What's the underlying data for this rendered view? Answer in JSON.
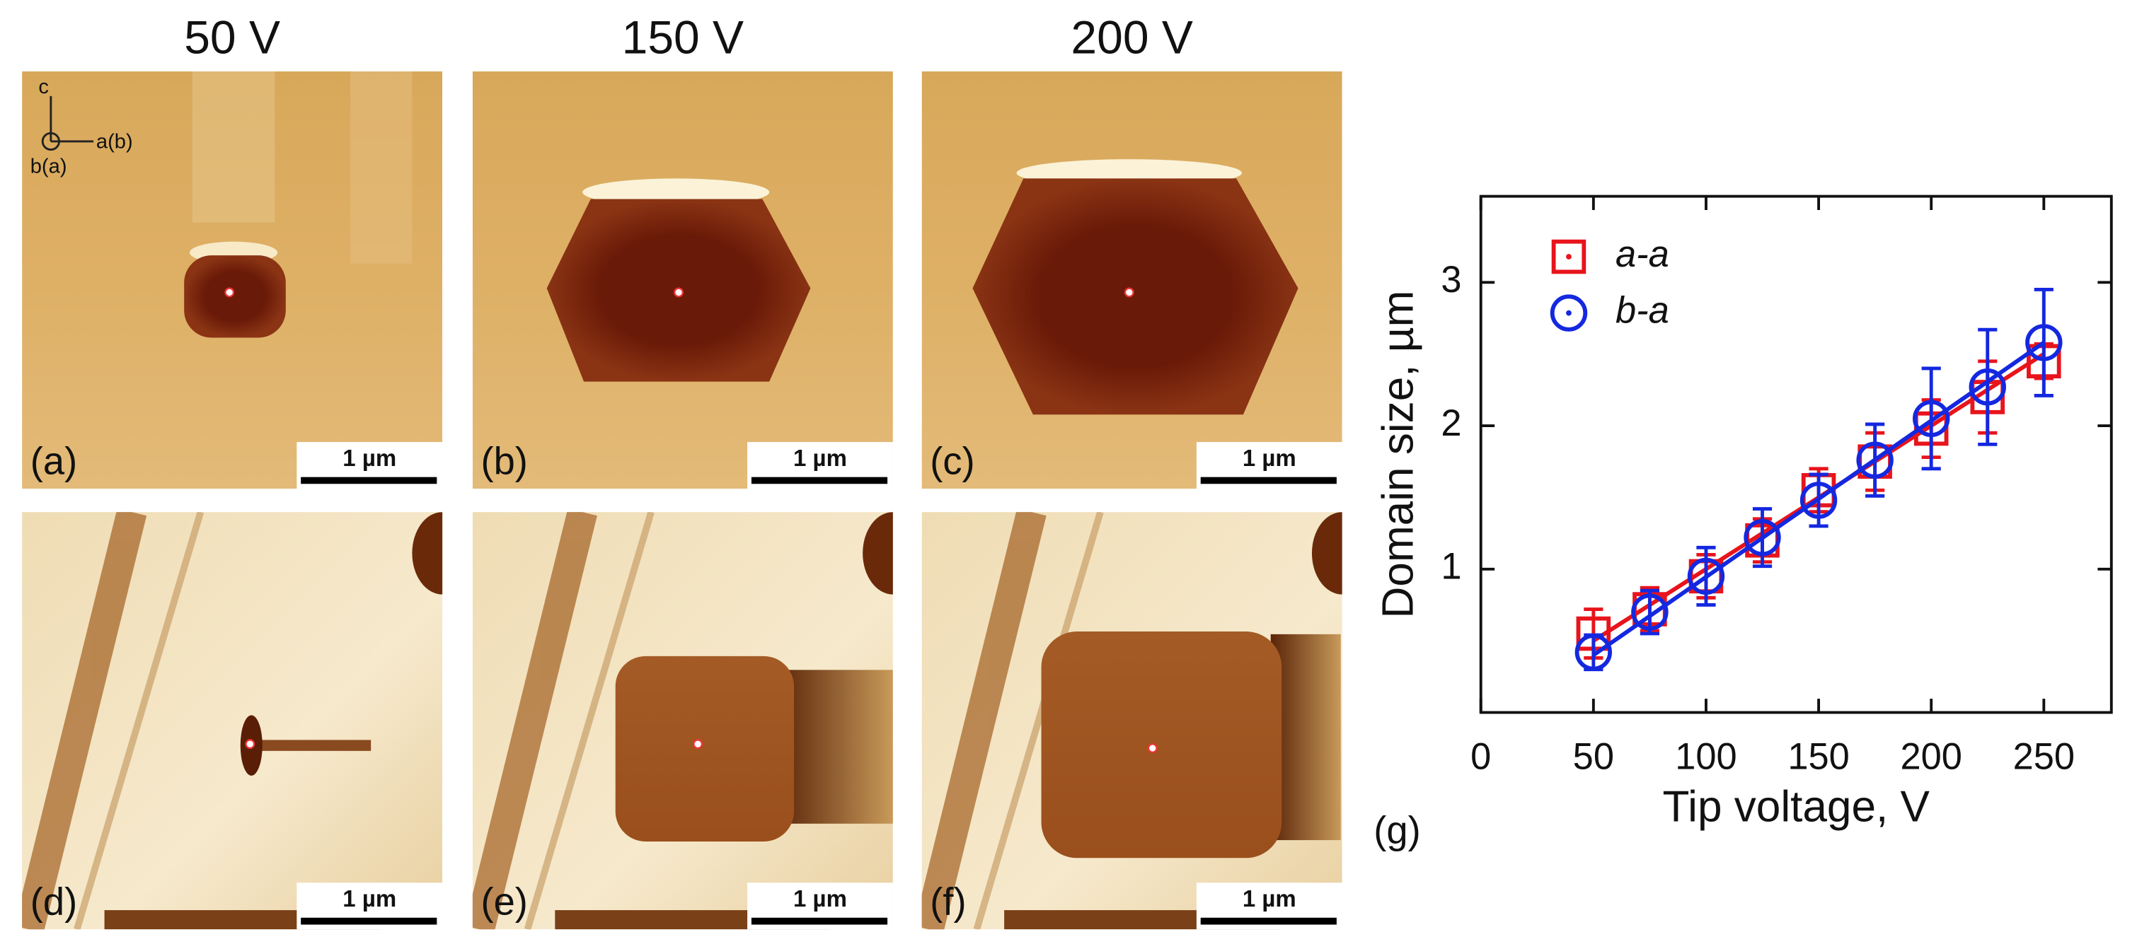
{
  "figure": {
    "column_titles": [
      "50 V",
      "150 V",
      "200 V"
    ],
    "panels": [
      {
        "label": "(a)",
        "scale_bar": "1 µm"
      },
      {
        "label": "(b)",
        "scale_bar": "1 µm"
      },
      {
        "label": "(c)",
        "scale_bar": "1 µm"
      },
      {
        "label": "(d)",
        "scale_bar": "1 µm"
      },
      {
        "label": "(e)",
        "scale_bar": "1 µm"
      },
      {
        "label": "(f)",
        "scale_bar": "1 µm"
      }
    ],
    "axis_labels": [
      "c",
      "a(b)",
      "b(a)"
    ],
    "chart_label": "(g)"
  },
  "chart_data": {
    "type": "scatter",
    "xlabel": "Tip voltage, V",
    "ylabel": "Domain size, µm",
    "x": [
      50,
      75,
      100,
      125,
      150,
      175,
      200,
      225,
      250
    ],
    "series": [
      {
        "name": "a-a",
        "color": "#e8141c",
        "marker": "square",
        "values": [
          0.55,
          0.72,
          0.95,
          1.2,
          1.55,
          1.75,
          1.98,
          2.2,
          2.45
        ],
        "errors": [
          0.17,
          0.15,
          0.15,
          0.15,
          0.15,
          0.2,
          0.2,
          0.25,
          0.12
        ],
        "fit_x": [
          50,
          250
        ],
        "fit_values": [
          0.5,
          2.5
        ]
      },
      {
        "name": "b-a",
        "color": "#1428e0",
        "marker": "circle",
        "values": [
          0.42,
          0.7,
          0.95,
          1.22,
          1.48,
          1.76,
          2.05,
          2.27,
          2.58
        ],
        "errors": [
          0.12,
          0.15,
          0.2,
          0.2,
          0.18,
          0.25,
          0.35,
          0.4,
          0.37
        ],
        "fit_x": [
          50,
          250
        ],
        "fit_values": [
          0.4,
          2.58
        ]
      }
    ],
    "xlim": [
      0,
      280
    ],
    "xticks": [
      0,
      50,
      100,
      150,
      200,
      250
    ],
    "ylim": [
      0,
      3.6
    ],
    "yticks": [
      1,
      2,
      3
    ],
    "legend": "upper left"
  }
}
